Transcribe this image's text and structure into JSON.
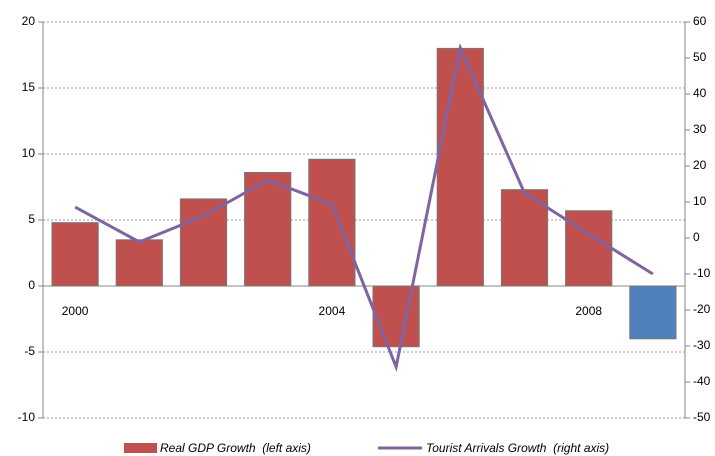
{
  "chart_data": {
    "type": "bar",
    "categories": [
      "2000",
      null,
      null,
      null,
      "2004",
      null,
      null,
      null,
      "2008",
      null
    ],
    "series": [
      {
        "name": "Real GDP Growth  (left axis)",
        "type": "bar",
        "color": "#c0504d",
        "colors": [
          "#c0504d",
          "#c0504d",
          "#c0504d",
          "#c0504d",
          "#c0504d",
          "#c0504d",
          "#c0504d",
          "#c0504d",
          "#c0504d",
          "#4f81bd"
        ],
        "values": [
          4.8,
          3.5,
          6.6,
          8.6,
          9.6,
          -4.6,
          18.0,
          7.3,
          5.7,
          -4.0
        ]
      },
      {
        "name": "Tourist Arrivals Growth  (right axis)",
        "type": "line",
        "axis": "y2",
        "color": "#8064a2",
        "values": [
          8.6,
          -1.1,
          6.1,
          16.1,
          9.4,
          -35.8,
          52.8,
          12.5,
          1.1,
          -10
        ]
      }
    ],
    "ylim": [
      -10,
      20
    ],
    "yticks": [
      -10,
      -5,
      0,
      5,
      10,
      15,
      20
    ],
    "y2lim": [
      -50,
      60
    ],
    "y2ticks": [
      -50,
      -40,
      -30,
      -20,
      -10,
      0,
      10,
      20,
      30,
      40,
      50,
      60
    ],
    "grid": true,
    "legend": "bottom"
  }
}
